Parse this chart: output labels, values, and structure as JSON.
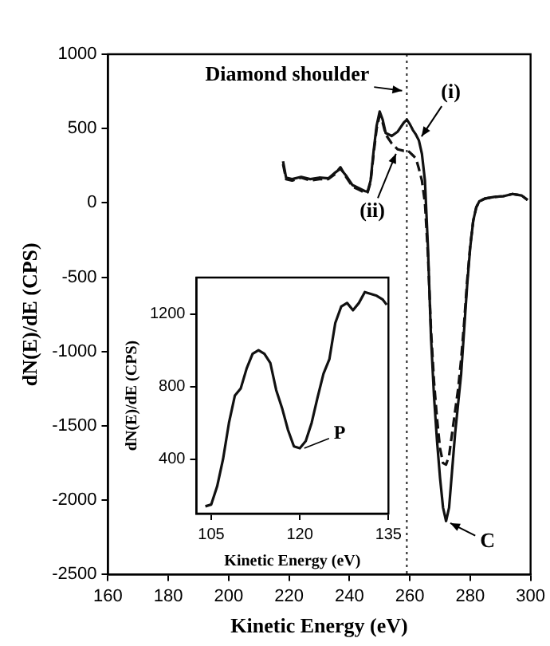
{
  "chart_data": [
    {
      "type": "line",
      "xlabel": "Kinetic Energy (eV)",
      "ylabel": "dN(E)/dE (CPS)",
      "xlim": [
        160,
        300
      ],
      "ylim": [
        -2500,
        1000
      ],
      "xticks": [
        160,
        180,
        200,
        220,
        240,
        260,
        280,
        300
      ],
      "yticks": [
        -2500,
        -2000,
        -1500,
        -1000,
        -500,
        0,
        500,
        1000
      ],
      "x": [
        218,
        219,
        221,
        224,
        227,
        230,
        233,
        235,
        237,
        239,
        241,
        243,
        245,
        246,
        247,
        248,
        249,
        250,
        251,
        252,
        254,
        256,
        258,
        259,
        260,
        261,
        262,
        263,
        264,
        265,
        266,
        267,
        268,
        269,
        270,
        271,
        272,
        273,
        274,
        275,
        276,
        277,
        278,
        279,
        280,
        281,
        282,
        283,
        285,
        288,
        291,
        294,
        297,
        299
      ],
      "series": [
        {
          "color": "#111111",
          "line_style": "solid",
          "values": [
            280,
            170,
            160,
            175,
            160,
            170,
            165,
            200,
            230,
            180,
            120,
            100,
            80,
            75,
            150,
            350,
            520,
            615,
            560,
            470,
            450,
            480,
            540,
            560,
            530,
            490,
            460,
            420,
            330,
            150,
            -300,
            -900,
            -1300,
            -1600,
            -1850,
            -2050,
            -2140,
            -2050,
            -1800,
            -1550,
            -1350,
            -1150,
            -850,
            -550,
            -300,
            -120,
            -30,
            10,
            30,
            40,
            45,
            60,
            50,
            20
          ]
        },
        {
          "color": "#111111",
          "line_style": "dashed",
          "values": [
            260,
            160,
            150,
            170,
            150,
            160,
            160,
            190,
            240,
            170,
            110,
            90,
            70,
            70,
            140,
            330,
            500,
            590,
            540,
            460,
            400,
            360,
            350,
            355,
            340,
            320,
            300,
            230,
            150,
            0,
            -350,
            -850,
            -1200,
            -1450,
            -1650,
            -1750,
            -1760,
            -1700,
            -1550,
            -1400,
            -1250,
            -1050,
            -800,
            -520,
            -290,
            -120,
            -30,
            10,
            30,
            40,
            45,
            60,
            50,
            20
          ]
        }
      ],
      "ref_lines": [
        {
          "axis": "x",
          "value": 259,
          "line_style": "dotted"
        }
      ],
      "annotations": [
        {
          "text": "Diamond shoulder",
          "x": 259,
          "y": 750
        },
        {
          "text": "(i)",
          "x": 263,
          "y": 420
        },
        {
          "text": "(ii)",
          "x": 256,
          "y": 360
        },
        {
          "text": "C",
          "x": 272,
          "y": -2140
        }
      ]
    },
    {
      "type": "line",
      "xlabel": "Kinetic Energy (eV)",
      "ylabel": "dN(E)/dE (CPS)",
      "xlim": [
        102.5,
        135
      ],
      "ylim": [
        100,
        1400
      ],
      "xticks": [
        105,
        120,
        135
      ],
      "yticks": [
        400,
        800,
        1200
      ],
      "x": [
        104,
        105,
        106,
        107,
        108,
        109,
        110,
        111,
        112,
        113,
        114,
        115,
        116,
        117,
        118,
        119,
        120,
        121,
        122,
        123,
        124,
        125,
        126,
        127,
        128,
        129,
        130,
        131,
        132,
        133,
        134,
        134.7
      ],
      "series": [
        {
          "color": "#111111",
          "line_style": "solid",
          "values": [
            140,
            150,
            250,
            400,
            600,
            750,
            790,
            900,
            980,
            1000,
            980,
            930,
            780,
            680,
            560,
            470,
            460,
            500,
            600,
            740,
            870,
            950,
            1150,
            1240,
            1260,
            1220,
            1260,
            1320,
            1310,
            1300,
            1280,
            1250
          ]
        }
      ],
      "annotations": [
        {
          "text": "P",
          "x": 120,
          "y": 450
        }
      ]
    }
  ]
}
